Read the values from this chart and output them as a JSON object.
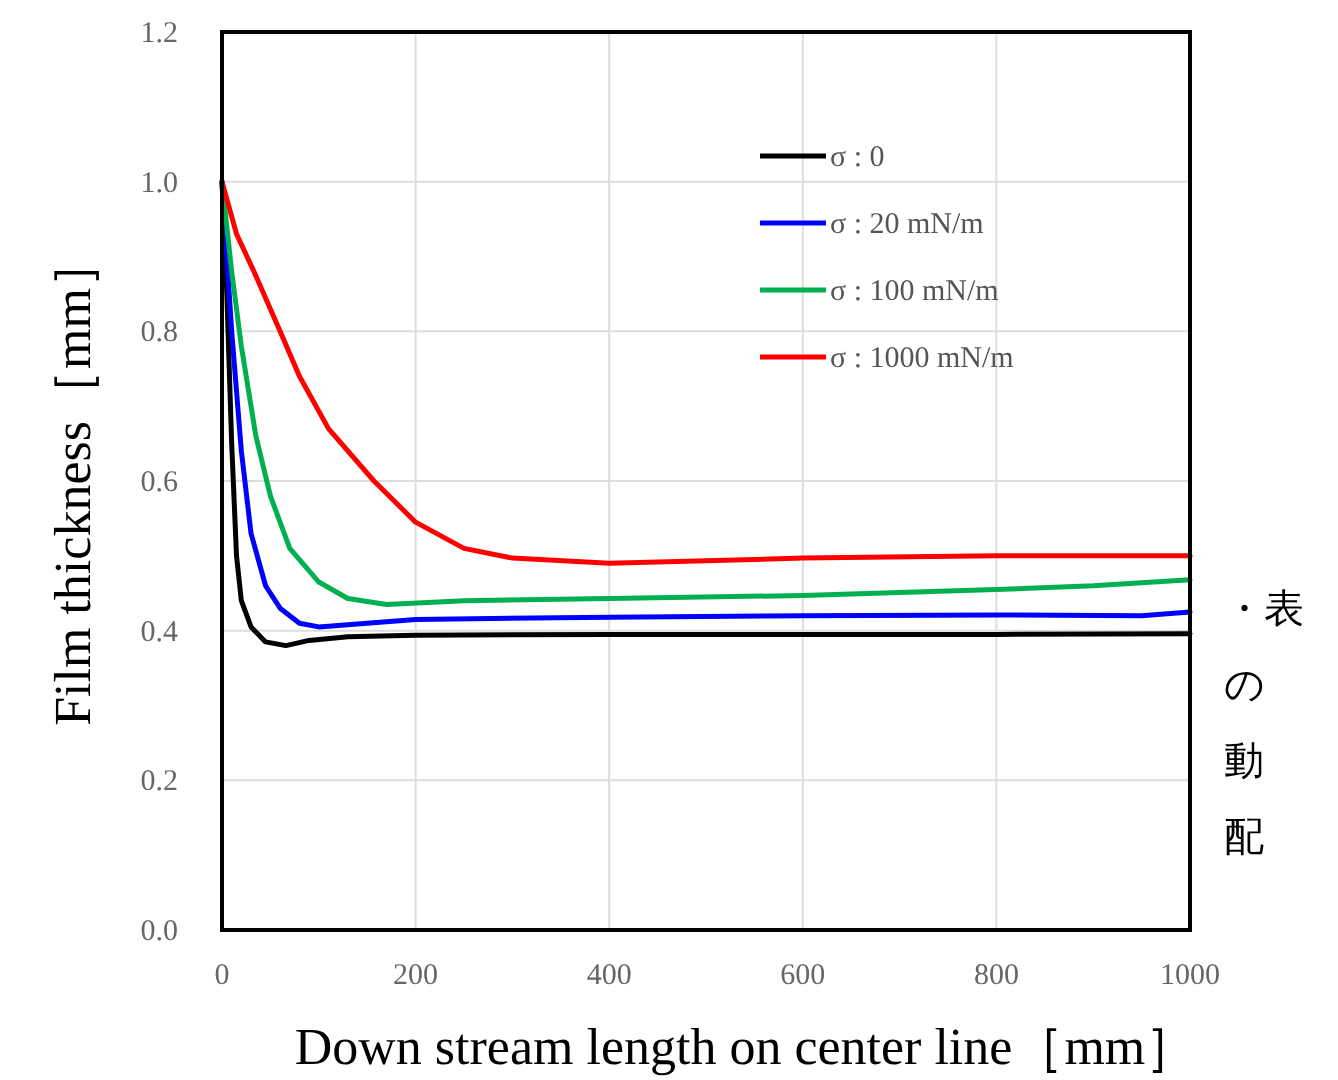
{
  "chart_data": {
    "type": "line",
    "xlabel": "Down stream length on center line［mm］",
    "ylabel": "Film thickness［mm］",
    "xlim": [
      0,
      1000
    ],
    "xticks": [
      0,
      200,
      400,
      600,
      800,
      1000
    ],
    "ylim": [
      0,
      1.2
    ],
    "yticks": [
      {
        "value": 0,
        "label": "0.0"
      },
      0.2,
      0.4,
      0.6,
      0.8,
      {
        "value": 1,
        "label": "1.0"
      },
      1.2
    ],
    "grid": true,
    "legend": "top right",
    "line_style": "solid",
    "marker": "none",
    "series": [
      {
        "name": "σ : 0",
        "color": "#000000",
        "x": [
          0,
          5,
          10,
          15,
          20,
          30,
          45,
          66,
          90,
          130,
          200,
          400,
          600,
          800,
          1000
        ],
        "values": [
          1.0,
          0.85,
          0.65,
          0.5,
          0.44,
          0.405,
          0.385,
          0.38,
          0.387,
          0.392,
          0.394,
          0.395,
          0.395,
          0.395,
          0.396
        ]
      },
      {
        "name": "σ : 20 mN/m",
        "color": "#0000ff",
        "x": [
          0,
          10,
          20,
          30,
          45,
          60,
          80,
          100,
          150,
          200,
          400,
          600,
          800,
          950,
          1000
        ],
        "values": [
          1.0,
          0.8,
          0.64,
          0.53,
          0.46,
          0.43,
          0.41,
          0.405,
          0.41,
          0.415,
          0.418,
          0.42,
          0.421,
          0.42,
          0.425
        ]
      },
      {
        "name": "σ : 100 mN/m",
        "color": "#00b050",
        "x": [
          0,
          10,
          20,
          35,
          50,
          70,
          100,
          130,
          170,
          250,
          400,
          600,
          800,
          900,
          1000
        ],
        "values": [
          1.0,
          0.88,
          0.78,
          0.66,
          0.58,
          0.51,
          0.465,
          0.443,
          0.435,
          0.44,
          0.443,
          0.447,
          0.455,
          0.46,
          0.468
        ]
      },
      {
        "name": "σ : 1000 mN/m",
        "color": "#ff0000",
        "x": [
          0,
          15,
          33,
          60,
          80,
          110,
          157,
          200,
          250,
          300,
          400,
          600,
          800,
          1000
        ],
        "values": [
          1.0,
          0.93,
          0.88,
          0.8,
          0.74,
          0.67,
          0.6,
          0.545,
          0.51,
          0.497,
          0.49,
          0.497,
          0.5,
          0.5
        ]
      }
    ],
    "annotations": [
      "・表",
      "の",
      "動",
      "配"
    ]
  }
}
